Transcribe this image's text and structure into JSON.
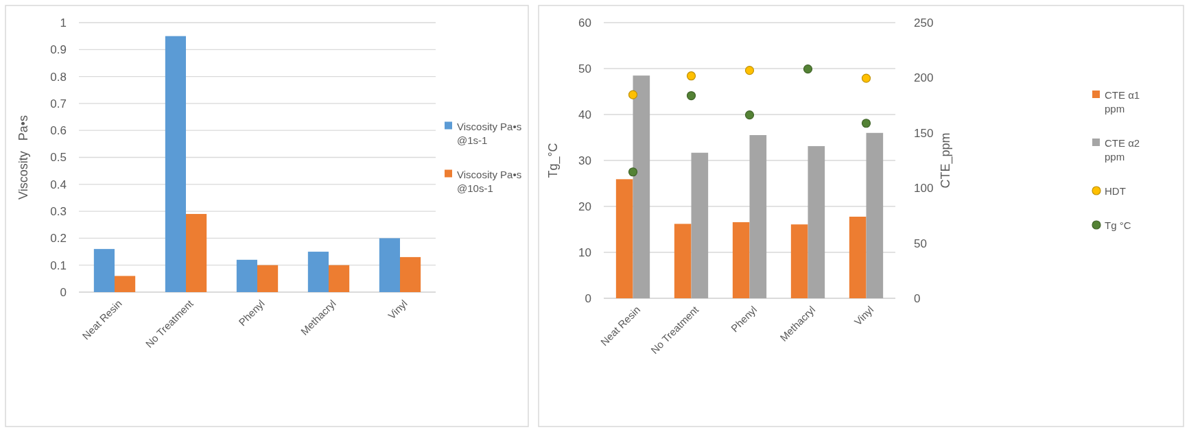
{
  "chart_data": [
    {
      "type": "bar",
      "ylabel": "Viscosity   Pa•s",
      "categories": [
        "Neat Resin",
        "No Treatment",
        "Phenyl",
        "Methacryl",
        "Vinyl"
      ],
      "series": [
        {
          "name": "Viscosity Pa•s @1s-1",
          "color": "#5b9bd5",
          "values": [
            0.16,
            0.95,
            0.12,
            0.15,
            0.2
          ]
        },
        {
          "name": "Viscosity Pa•s @10s-1",
          "color": "#ed7d31",
          "values": [
            0.06,
            0.29,
            0.1,
            0.1,
            0.13
          ]
        }
      ],
      "ylim": [
        0,
        1
      ],
      "yticks": [
        0,
        0.1,
        0.2,
        0.3,
        0.4,
        0.5,
        0.6,
        0.7,
        0.8,
        0.9,
        1
      ],
      "grid": "y",
      "legend": "right"
    },
    {
      "type": "bar",
      "ylabel": "Tg_°C",
      "y2label": "CTE_ppm",
      "categories": [
        "Neat Resin",
        "No Treatment",
        "Phenyl",
        "Methacryl",
        "Vinyl"
      ],
      "series": [
        {
          "name": "CTE α1 ppm",
          "color": "#ed7d31",
          "axis": "y2",
          "values": [
            108,
            67.5,
            69,
            67,
            74
          ]
        },
        {
          "name": "CTE α2 ppm",
          "color": "#a5a5a5",
          "axis": "y2",
          "values": [
            202,
            132,
            148,
            138,
            150
          ]
        },
        {
          "name": "HDT",
          "type": "scatter",
          "color": "#ffc000",
          "values": [
            44.3,
            48.4,
            49.6,
            null,
            47.9
          ]
        },
        {
          "name": "Tg °C",
          "type": "scatter",
          "color": "#548235",
          "values": [
            27.5,
            44.1,
            39.9,
            49.9,
            38.1
          ]
        }
      ],
      "ylim": [
        0,
        60
      ],
      "yticks": [
        0,
        10,
        20,
        30,
        40,
        50,
        60
      ],
      "y2lim": [
        0,
        250
      ],
      "y2ticks": [
        0,
        50,
        100,
        150,
        200,
        250
      ],
      "grid": "y",
      "legend": "right",
      "marker": "circle"
    }
  ]
}
